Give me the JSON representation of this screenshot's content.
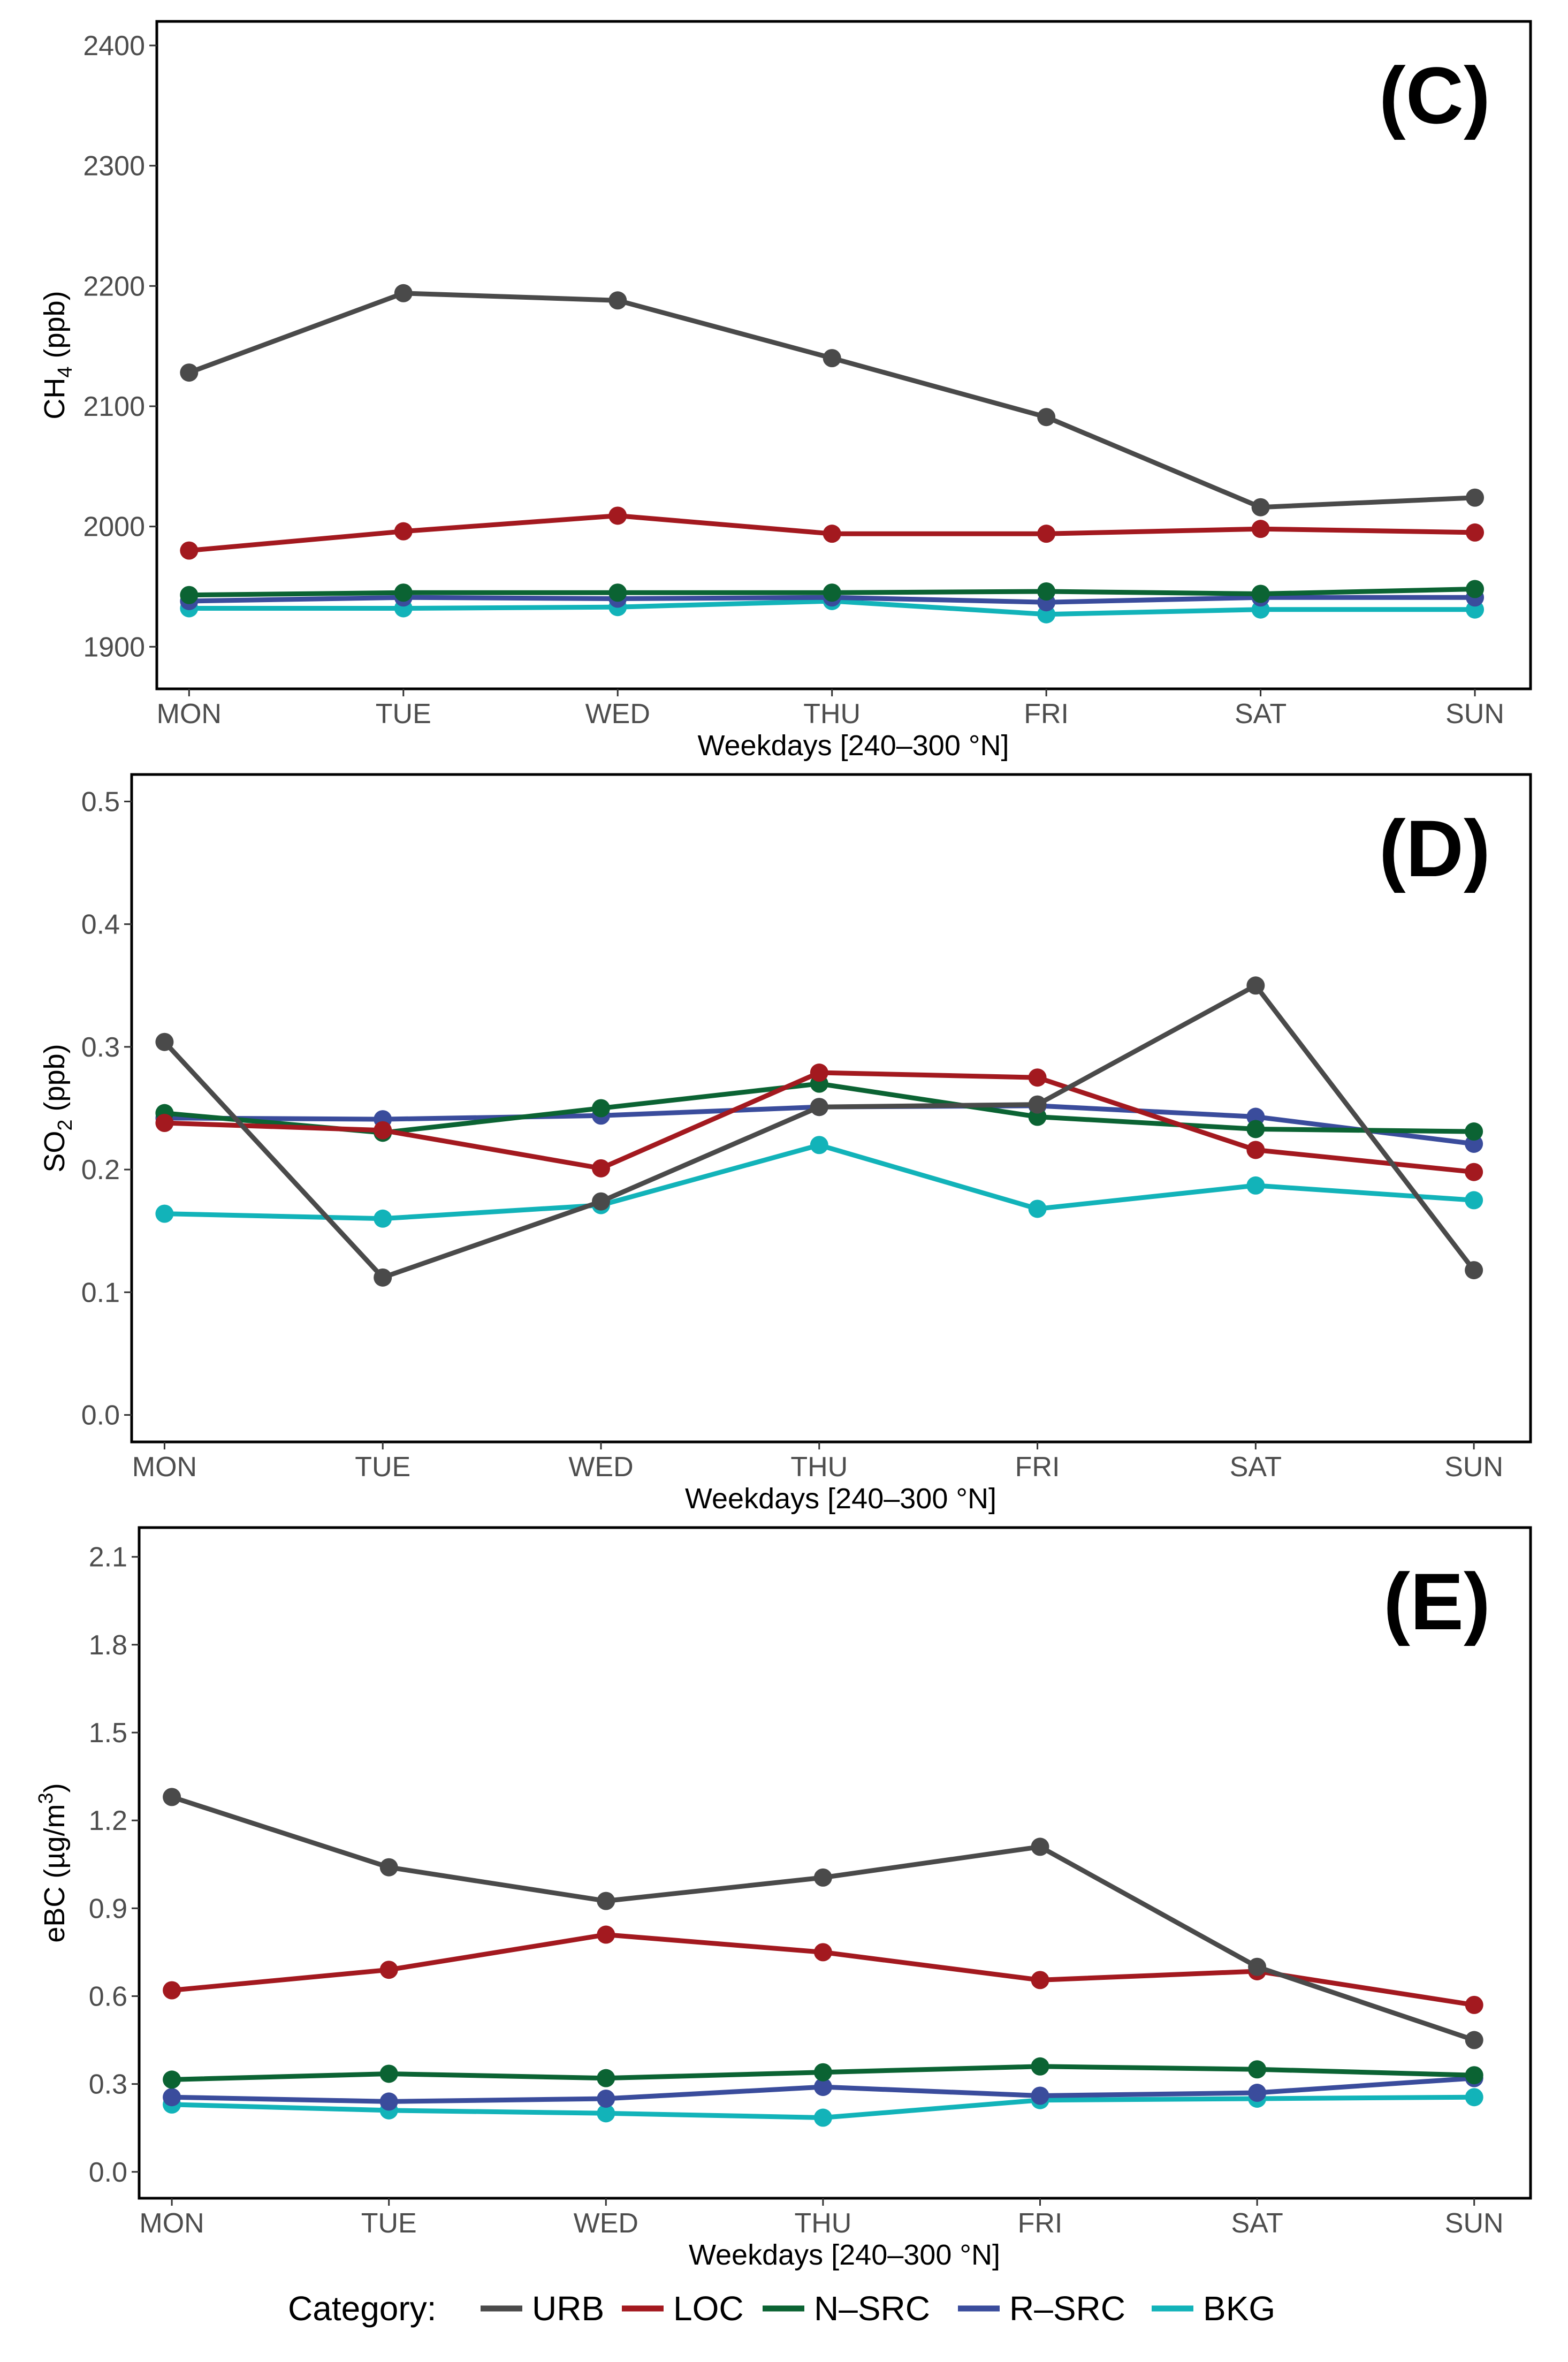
{
  "colors": {
    "URB": "#4a4a4a",
    "LOC": "#a3191f",
    "N-SRC": "#0b6333",
    "R-SRC": "#3a4c9c",
    "BKG": "#12b3b9"
  },
  "legend": {
    "title": "Category:",
    "entries": [
      {
        "key": "URB",
        "label": "URB"
      },
      {
        "key": "LOC",
        "label": "LOC"
      },
      {
        "key": "N-SRC",
        "label": "N–SRC"
      },
      {
        "key": "R-SRC",
        "label": "R–SRC"
      },
      {
        "key": "BKG",
        "label": "BKG"
      }
    ]
  },
  "chart_data": [
    {
      "type": "line",
      "panel_label": "(C)",
      "xlabel": "Weekdays [240–300 °N]",
      "ylabel_main": "CH",
      "ylabel_sub": "4",
      "ylabel_rest": " (ppb)",
      "categories": [
        "MON",
        "TUE",
        "WED",
        "THU",
        "FRI",
        "SAT",
        "SUN"
      ],
      "ylim": [
        1865,
        2420
      ],
      "yticks": [
        1900,
        2000,
        2100,
        2200,
        2300,
        2400
      ],
      "ytick_labels": [
        "1900",
        "2000",
        "2100",
        "2200",
        "2300",
        "2400"
      ],
      "grid": false,
      "series": [
        {
          "name": "URB",
          "values": [
            2128,
            2194,
            2188,
            2140,
            2091,
            2016,
            2024
          ]
        },
        {
          "name": "LOC",
          "values": [
            1980,
            1996,
            2009,
            1994,
            1994,
            1998,
            1995
          ]
        },
        {
          "name": "N-SRC",
          "values": [
            1943,
            1945,
            1945,
            1945,
            1946,
            1944,
            1948
          ]
        },
        {
          "name": "R-SRC",
          "values": [
            1938,
            1941,
            1940,
            1941,
            1937,
            1941,
            1941
          ]
        },
        {
          "name": "BKG",
          "values": [
            1932,
            1932,
            1933,
            1938,
            1927,
            1931,
            1931
          ]
        }
      ]
    },
    {
      "type": "line",
      "panel_label": "(D)",
      "xlabel": "Weekdays [240–300 °N]",
      "ylabel_main": "SO",
      "ylabel_sub": "2",
      "ylabel_rest": " (ppb)",
      "categories": [
        "MON",
        "TUE",
        "WED",
        "THU",
        "FRI",
        "SAT",
        "SUN"
      ],
      "ylim": [
        -0.022,
        0.522
      ],
      "yticks": [
        0.0,
        0.1,
        0.2,
        0.3,
        0.4,
        0.5
      ],
      "ytick_labels": [
        "0.0",
        "0.1",
        "0.2",
        "0.3",
        "0.4",
        "0.5"
      ],
      "grid": false,
      "series": [
        {
          "name": "URB",
          "values": [
            0.304,
            0.112,
            0.174,
            0.251,
            0.253,
            0.35,
            0.118
          ]
        },
        {
          "name": "LOC",
          "values": [
            0.238,
            0.232,
            0.201,
            0.279,
            0.275,
            0.216,
            0.198
          ]
        },
        {
          "name": "N-SRC",
          "values": [
            0.246,
            0.23,
            0.25,
            0.27,
            0.243,
            0.233,
            0.231
          ]
        },
        {
          "name": "R-SRC",
          "values": [
            0.242,
            0.241,
            0.244,
            0.251,
            0.252,
            0.243,
            0.221
          ]
        },
        {
          "name": "BKG",
          "values": [
            0.164,
            0.16,
            0.171,
            0.22,
            0.168,
            0.187,
            0.175
          ]
        }
      ]
    },
    {
      "type": "line",
      "panel_label": "(E)",
      "xlabel": "Weekdays [240–300 °N]",
      "ylabel_main": "eBC (µg/m",
      "ylabel_sup": "3",
      "ylabel_rest": ")",
      "categories": [
        "MON",
        "TUE",
        "WED",
        "THU",
        "FRI",
        "SAT",
        "SUN"
      ],
      "ylim": [
        -0.09,
        2.2
      ],
      "yticks": [
        0.0,
        0.3,
        0.6,
        0.9,
        1.2,
        1.5,
        1.8,
        2.1
      ],
      "ytick_labels": [
        "0.0",
        "0.3",
        "0.6",
        "0.9",
        "1.2",
        "1.5",
        "1.8",
        "2.1"
      ],
      "grid": false,
      "series": [
        {
          "name": "URB",
          "values": [
            1.28,
            1.04,
            0.925,
            1.005,
            1.11,
            0.7,
            0.45
          ]
        },
        {
          "name": "LOC",
          "values": [
            0.62,
            0.69,
            0.81,
            0.75,
            0.655,
            0.685,
            0.57
          ]
        },
        {
          "name": "N-SRC",
          "values": [
            0.315,
            0.335,
            0.32,
            0.34,
            0.36,
            0.35,
            0.33
          ]
        },
        {
          "name": "R-SRC",
          "values": [
            0.255,
            0.24,
            0.25,
            0.29,
            0.26,
            0.27,
            0.32
          ]
        },
        {
          "name": "BKG",
          "values": [
            0.23,
            0.21,
            0.2,
            0.185,
            0.245,
            0.25,
            0.255
          ]
        }
      ]
    }
  ]
}
